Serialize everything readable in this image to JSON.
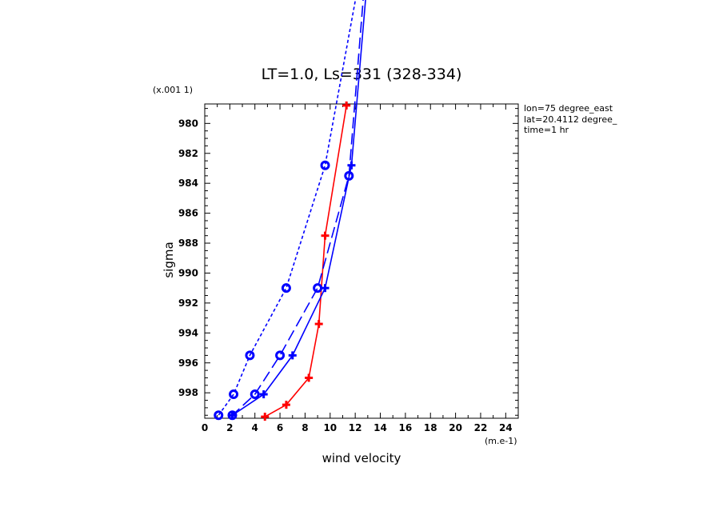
{
  "chart_data": {
    "type": "line",
    "title": "LT=1.0, Ls=331 (328-334)",
    "xlabel": "wind velocity",
    "ylabel": "sigma",
    "x_unit": "(m.e-1)",
    "y_unit": "(x.001 1)",
    "xlim": [
      0,
      25
    ],
    "ylim": [
      999.7,
      978.7
    ],
    "x_ticks": [
      0,
      2,
      4,
      6,
      8,
      10,
      12,
      14,
      16,
      18,
      20,
      22,
      24
    ],
    "y_ticks": [
      980,
      982,
      984,
      986,
      988,
      990,
      992,
      994,
      996,
      998
    ],
    "grid": false,
    "annotations": [
      "lon=75 degree_east",
      "lat=20.4112 degree_",
      "time=1 hr"
    ],
    "series": [
      {
        "color": "#ff0000",
        "line": "solid",
        "marker": "plus",
        "points": [
          [
            11.3,
            978.8
          ],
          [
            9.6,
            987.5
          ],
          [
            9.1,
            993.4
          ],
          [
            8.3,
            997.0
          ],
          [
            6.5,
            998.8
          ],
          [
            4.8,
            999.6
          ]
        ]
      },
      {
        "color": "#0000ff",
        "line": "solid",
        "marker": "plus",
        "points": [
          [
            13.0,
            970.0
          ],
          [
            11.7,
            982.8
          ],
          [
            9.6,
            991.0
          ],
          [
            7.0,
            995.5
          ],
          [
            4.7,
            998.1
          ],
          [
            2.2,
            999.5
          ]
        ]
      },
      {
        "color": "#0000ff",
        "line": "long-dash",
        "marker": "circle",
        "points": [
          [
            12.8,
            970.0
          ],
          [
            11.5,
            983.5
          ],
          [
            9.0,
            991.0
          ],
          [
            6.0,
            995.5
          ],
          [
            4.0,
            998.1
          ],
          [
            2.2,
            999.5
          ]
        ]
      },
      {
        "color": "#0000ff",
        "line": "dash",
        "marker": "circle",
        "points": [
          [
            12.4,
            970.0
          ],
          [
            9.6,
            982.8
          ],
          [
            6.5,
            991.0
          ],
          [
            3.6,
            995.5
          ],
          [
            2.3,
            998.1
          ],
          [
            1.1,
            999.5
          ]
        ]
      }
    ]
  }
}
